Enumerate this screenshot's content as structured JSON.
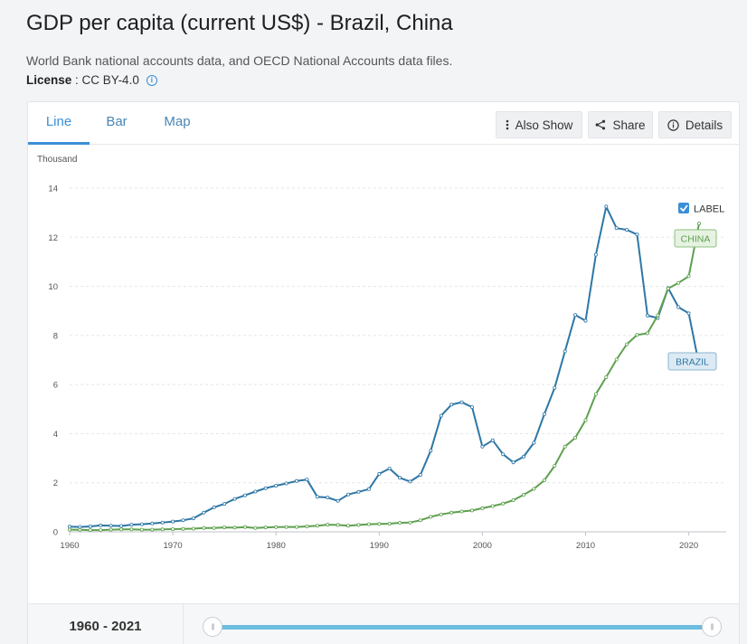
{
  "page": {
    "title": "GDP per capita (current US$) - Brazil, China",
    "source": "World Bank national accounts data, and OECD National Accounts data files.",
    "license_label": "License",
    "license_sep": " : ",
    "license_value": "CC BY-4.0",
    "info_icon": "info-icon"
  },
  "tabs": [
    {
      "label": "Line",
      "active": true
    },
    {
      "label": "Bar",
      "active": false
    },
    {
      "label": "Map",
      "active": false
    }
  ],
  "toolbar": {
    "also_show": "Also Show",
    "share": "Share",
    "details": "Details"
  },
  "label_toggle": {
    "text": "LABEL",
    "checked": true
  },
  "range": {
    "label": "1960 - 2021",
    "start": 1960,
    "end": 2021
  },
  "colors": {
    "brazil": "#2e77a6",
    "china": "#5ea04f",
    "accent": "#3a8fd6"
  },
  "chart_data": {
    "type": "line",
    "title": "GDP per capita (current US$) - Brazil, China",
    "ylabel": "Thousand",
    "xlabel": "",
    "xlim": [
      1960,
      2021
    ],
    "ylim": [
      0,
      14
    ],
    "yticks": [
      0,
      2,
      4,
      6,
      8,
      10,
      12,
      14
    ],
    "xticks": [
      1960,
      1970,
      1980,
      1990,
      2000,
      2010,
      2020
    ],
    "grid": true,
    "x": [
      1960,
      1961,
      1962,
      1963,
      1964,
      1965,
      1966,
      1967,
      1968,
      1969,
      1970,
      1971,
      1972,
      1973,
      1974,
      1975,
      1976,
      1977,
      1978,
      1979,
      1980,
      1981,
      1982,
      1983,
      1984,
      1985,
      1986,
      1987,
      1988,
      1989,
      1990,
      1991,
      1992,
      1993,
      1994,
      1995,
      1996,
      1997,
      1998,
      1999,
      2000,
      2001,
      2002,
      2003,
      2004,
      2005,
      2006,
      2007,
      2008,
      2009,
      2010,
      2011,
      2012,
      2013,
      2014,
      2015,
      2016,
      2017,
      2018,
      2019,
      2020,
      2021
    ],
    "series": [
      {
        "name": "Brazil",
        "label": "BRAZIL",
        "values": [
          0.21,
          0.2,
          0.22,
          0.26,
          0.25,
          0.24,
          0.29,
          0.31,
          0.34,
          0.38,
          0.42,
          0.47,
          0.55,
          0.78,
          1.0,
          1.14,
          1.34,
          1.49,
          1.64,
          1.78,
          1.88,
          1.97,
          2.07,
          2.13,
          1.43,
          1.4,
          1.26,
          1.52,
          1.63,
          1.74,
          2.36,
          2.58,
          2.2,
          2.05,
          2.32,
          3.31,
          4.73,
          5.18,
          5.28,
          5.08,
          3.47,
          3.73,
          3.16,
          2.83,
          3.06,
          3.63,
          4.79,
          5.87,
          7.35,
          8.83,
          8.6,
          11.29,
          13.25,
          12.37,
          12.3,
          12.11,
          8.81,
          8.71,
          9.93,
          9.15,
          8.9,
          6.8
        ]
      },
      {
        "name": "China",
        "label": "CHINA",
        "values": [
          0.09,
          0.08,
          0.07,
          0.07,
          0.09,
          0.1,
          0.1,
          0.09,
          0.09,
          0.1,
          0.11,
          0.12,
          0.13,
          0.16,
          0.16,
          0.18,
          0.17,
          0.19,
          0.16,
          0.18,
          0.19,
          0.2,
          0.2,
          0.22,
          0.25,
          0.29,
          0.28,
          0.25,
          0.28,
          0.31,
          0.32,
          0.33,
          0.37,
          0.38,
          0.47,
          0.61,
          0.71,
          0.78,
          0.83,
          0.87,
          0.96,
          1.05,
          1.15,
          1.29,
          1.51,
          1.75,
          2.1,
          2.69,
          3.47,
          3.83,
          4.55,
          5.61,
          6.3,
          7.02,
          7.64,
          8.02,
          8.09,
          8.82,
          9.91,
          10.14,
          10.41,
          12.56
        ]
      }
    ]
  }
}
